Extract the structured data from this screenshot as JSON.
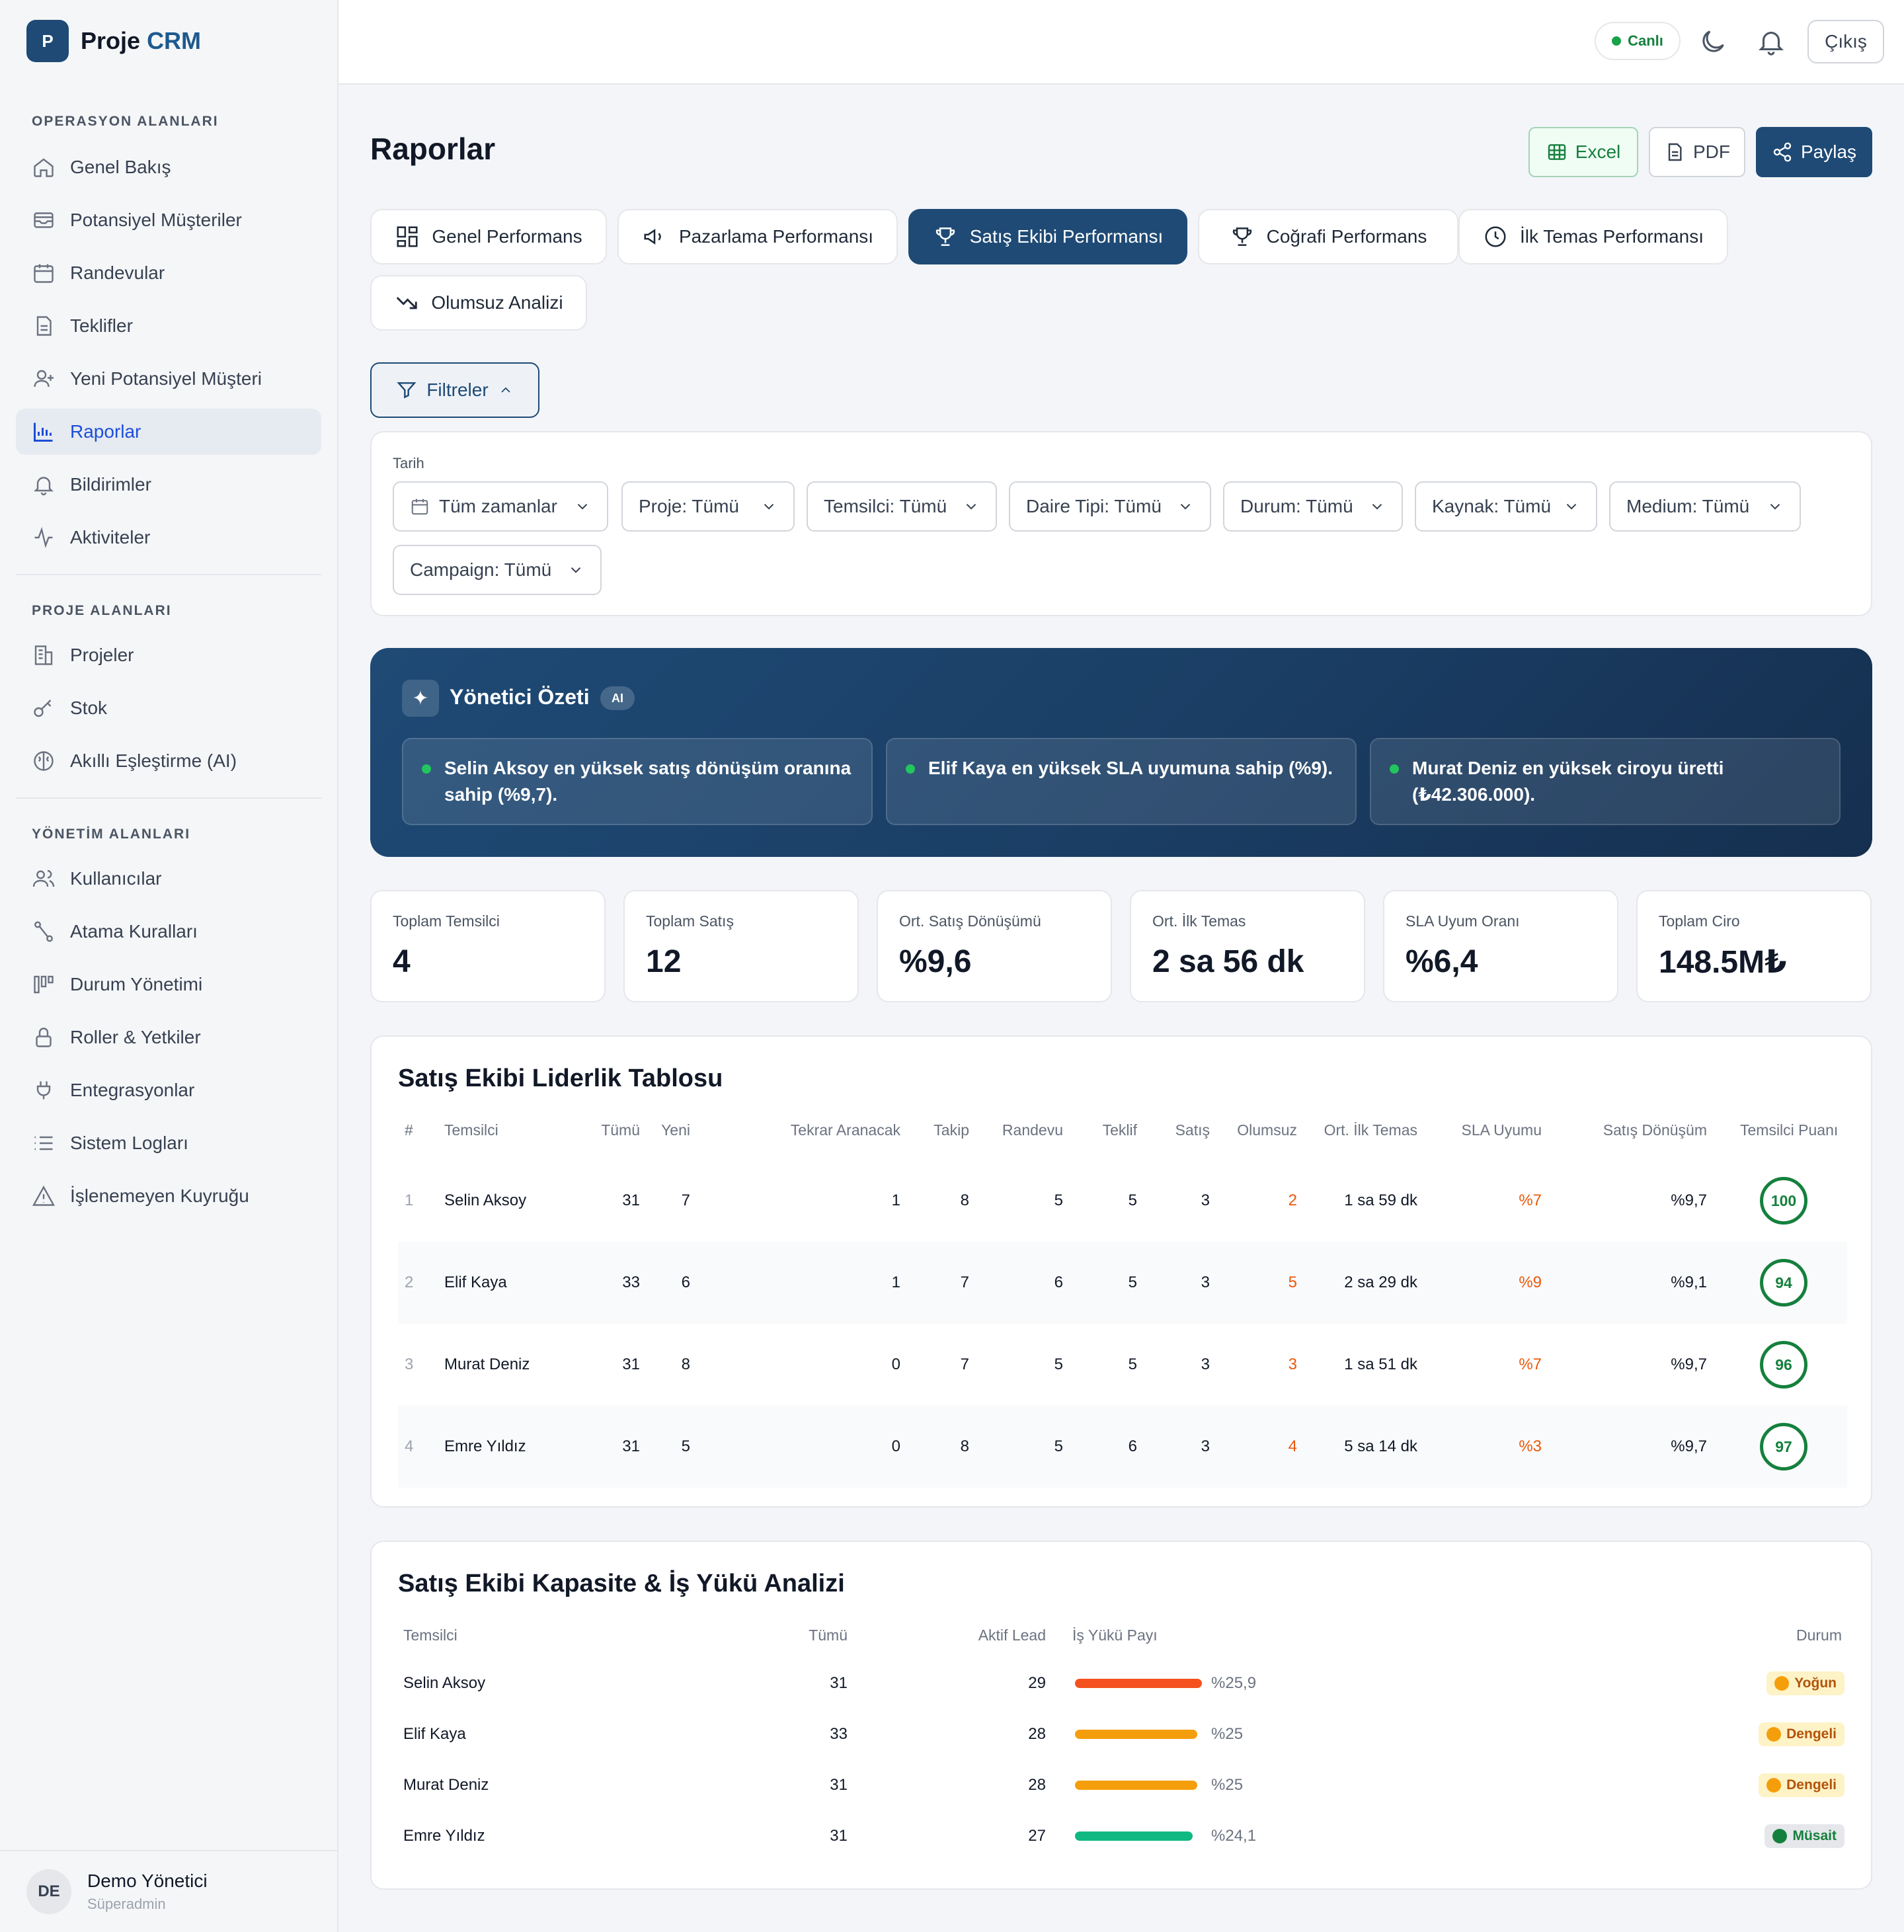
{
  "app": {
    "logo_letter": "P",
    "name_part1": "Proje",
    "name_part2": "CRM"
  },
  "sidebar": {
    "sections": [
      {
        "title": "OPERASYON ALANLARI"
      },
      {
        "title": "PROJE ALANLARI"
      },
      {
        "title": "YÖNETİM ALANLARI"
      }
    ],
    "items": [
      {
        "label": "Genel Bakış",
        "icon": "home-icon"
      },
      {
        "label": "Potansiyel Müşteriler",
        "icon": "inbox-icon"
      },
      {
        "label": "Randevular",
        "icon": "calendar-icon"
      },
      {
        "label": "Teklifler",
        "icon": "file-icon"
      },
      {
        "label": "Yeni Potansiyel Müşteri",
        "icon": "user-plus-icon"
      },
      {
        "label": "Raporlar",
        "icon": "bar-chart-icon",
        "active": true
      },
      {
        "label": "Bildirimler",
        "icon": "bell-icon"
      },
      {
        "label": "Aktiviteler",
        "icon": "activity-icon"
      },
      {
        "label": "Projeler",
        "icon": "building-icon"
      },
      {
        "label": "Stok",
        "icon": "key-icon"
      },
      {
        "label": "Akıllı Eşleştirme (AI)",
        "icon": "brain-icon"
      },
      {
        "label": "Kullanıcılar",
        "icon": "users-icon"
      },
      {
        "label": "Atama Kuralları",
        "icon": "route-icon"
      },
      {
        "label": "Durum Yönetimi",
        "icon": "columns-icon"
      },
      {
        "label": "Roller & Yetkiler",
        "icon": "lock-icon"
      },
      {
        "label": "Entegrasyonlar",
        "icon": "plug-icon"
      },
      {
        "label": "Sistem Logları",
        "icon": "list-icon"
      },
      {
        "label": "İşlenemeyen Kuyruğu",
        "icon": "warning-icon"
      }
    ],
    "user": {
      "initials": "DE",
      "name": "Demo Yönetici",
      "role": "Süperadmin"
    }
  },
  "topbar": {
    "live_label": "Canlı",
    "logout_label": "Çıkış"
  },
  "header": {
    "title": "Raporlar",
    "excel_label": "Excel",
    "pdf_label": "PDF",
    "share_label": "Paylaş"
  },
  "tabs": [
    {
      "label": "Genel Performans",
      "icon": "grid-icon"
    },
    {
      "label": "Pazarlama Performansı",
      "icon": "megaphone-icon"
    },
    {
      "label": "Satış Ekibi Performansı",
      "icon": "trophy-icon",
      "active": true
    },
    {
      "label": "Coğrafi Performans",
      "icon": "trophy-icon"
    },
    {
      "label": "İlk Temas Performansı",
      "icon": "clock-icon"
    },
    {
      "label": "Olumsuz Analizi",
      "icon": "trend-down-icon"
    }
  ],
  "filters": {
    "toggle_label": "Filtreler",
    "date_label": "Tarih",
    "dropdowns": [
      "Tüm zamanlar",
      "Proje: Tümü",
      "Temsilci: Tümü",
      "Daire Tipi: Tümü",
      "Durum: Tümü",
      "Kaynak: Tümü",
      "Medium: Tümü",
      "Campaign: Tümü"
    ]
  },
  "executive_summary": {
    "title": "Yönetici Özeti",
    "badge": "AI",
    "insights": [
      "Selin Aksoy en yüksek satış dönüşüm oranına sahip (%9,7).",
      "Elif Kaya en yüksek SLA uyumuna sahip (%9).",
      "Murat Deniz en yüksek ciroyu üretti (₺42.306.000)."
    ]
  },
  "kpis": [
    {
      "label": "Toplam Temsilci",
      "value": "4"
    },
    {
      "label": "Toplam Satış",
      "value": "12"
    },
    {
      "label": "Ort. Satış Dönüşümü",
      "value": "%9,6"
    },
    {
      "label": "Ort. İlk Temas",
      "value": "2 sa 56 dk"
    },
    {
      "label": "SLA Uyum Oranı",
      "value": "%6,4"
    },
    {
      "label": "Toplam Ciro",
      "value": "148.5M₺"
    }
  ],
  "leaderboard": {
    "title": "Satış Ekibi Liderlik Tablosu",
    "columns": [
      "#",
      "Temsilci",
      "Tümü",
      "Yeni",
      "Tekrar Aranacak",
      "Takip",
      "Randevu",
      "Teklif",
      "Satış",
      "Olumsuz",
      "Ort. İlk Temas",
      "SLA Uyumu",
      "Satış Dönüşüm",
      "Temsilci Puanı"
    ],
    "rows": [
      {
        "rank": "1",
        "name": "Selin Aksoy",
        "total": "31",
        "new": "7",
        "callback": "1",
        "followup": "8",
        "appointment": "5",
        "offer": "5",
        "sale": "3",
        "negative": "2",
        "first_contact": "1 sa 59 dk",
        "sla": "%7",
        "conversion": "%9,7",
        "score": 100
      },
      {
        "rank": "2",
        "name": "Elif Kaya",
        "total": "33",
        "new": "6",
        "callback": "1",
        "followup": "7",
        "appointment": "6",
        "offer": "5",
        "sale": "3",
        "negative": "5",
        "first_contact": "2 sa 29 dk",
        "sla": "%9",
        "conversion": "%9,1",
        "score": 94
      },
      {
        "rank": "3",
        "name": "Murat Deniz",
        "total": "31",
        "new": "8",
        "callback": "0",
        "followup": "7",
        "appointment": "5",
        "offer": "5",
        "sale": "3",
        "negative": "3",
        "first_contact": "1 sa 51 dk",
        "sla": "%7",
        "conversion": "%9,7",
        "score": 96
      },
      {
        "rank": "4",
        "name": "Emre Yıldız",
        "total": "31",
        "new": "5",
        "callback": "0",
        "followup": "8",
        "appointment": "5",
        "offer": "6",
        "sale": "3",
        "negative": "4",
        "first_contact": "5 sa 14 dk",
        "sla": "%3",
        "conversion": "%9,7",
        "score": 97
      }
    ]
  },
  "capacity": {
    "title": "Satış Ekibi Kapasite & İş Yükü Analizi",
    "columns": [
      "Temsilci",
      "Tümü",
      "Aktif Lead",
      "İş Yükü Payı",
      "Durum"
    ],
    "rows": [
      {
        "name": "Selin Aksoy",
        "total": "31",
        "active": "29",
        "share_label": "%25,9",
        "share": 25.9,
        "bar_color": "#f4511e",
        "status": "Yoğun",
        "status_bg": "#fef3c7",
        "status_fg": "#b45309",
        "dot": "#f59e0b"
      },
      {
        "name": "Elif Kaya",
        "total": "33",
        "active": "28",
        "share_label": "%25",
        "share": 25,
        "bar_color": "#f59e0b",
        "status": "Dengeli",
        "status_bg": "#fef3c7",
        "status_fg": "#b45309",
        "dot": "#f59e0b"
      },
      {
        "name": "Murat Deniz",
        "total": "31",
        "active": "28",
        "share_label": "%25",
        "share": 25,
        "bar_color": "#f59e0b",
        "status": "Dengeli",
        "status_bg": "#fef3c7",
        "status_fg": "#b45309",
        "dot": "#f59e0b"
      },
      {
        "name": "Emre Yıldız",
        "total": "31",
        "active": "27",
        "share_label": "%24,1",
        "share": 24.1,
        "bar_color": "#10b981",
        "status": "Müsait",
        "status_bg": "#e5e7eb",
        "status_fg": "#15803d",
        "dot": "#15803d"
      }
    ]
  }
}
